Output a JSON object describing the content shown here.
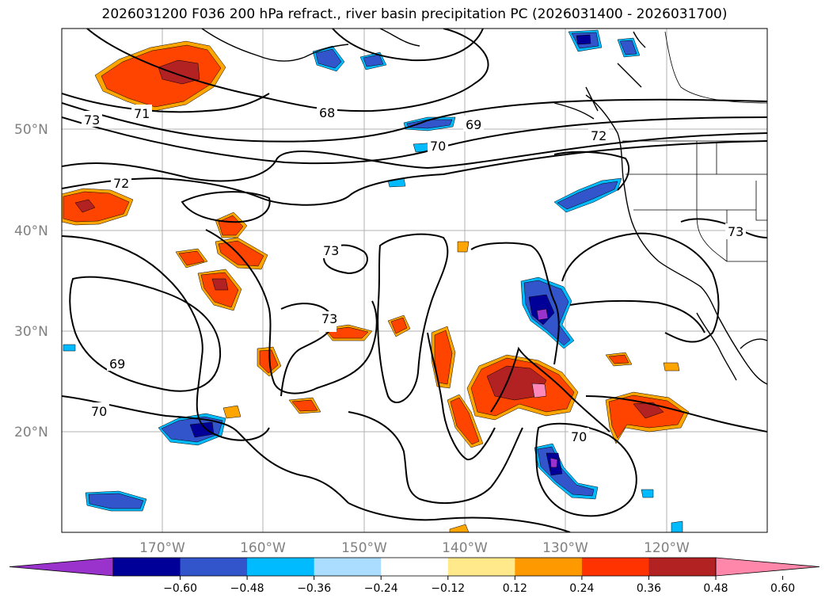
{
  "title": "2026031200 F036 200 hPa refract., river basin precipitation PC (2026031400 - 2026031700)",
  "lat_labels": [
    "50°N",
    "40°N",
    "30°N",
    "20°N"
  ],
  "lon_labels": [
    "170°W",
    "160°W",
    "150°W",
    "140°W",
    "130°W",
    "120°W"
  ],
  "contour_labels": [
    "73",
    "71",
    "68",
    "69",
    "70",
    "72",
    "72",
    "73",
    "73",
    "73",
    "69",
    "70",
    "70"
  ],
  "colorbar": {
    "ticks": [
      "−0.60",
      "−0.48",
      "−0.36",
      "−0.24",
      "−0.12",
      "0.12",
      "0.24",
      "0.36",
      "0.48",
      "0.60"
    ],
    "colors": [
      "#9933cc",
      "#000099",
      "#3355cc",
      "#00bbff",
      "#aaddff",
      "#ffffff",
      "#ffe98a",
      "#ff9900",
      "#ff3300",
      "#b22222",
      "#ff88aa"
    ]
  },
  "fill_colors": {
    "orange_red": "#ff4400",
    "dark_red": "#b22222",
    "orange": "#ffa500",
    "yellow": "#ffe680",
    "pink": "#ff88bb",
    "blue": "#3355cc",
    "navy": "#000099",
    "cyan": "#00bbff",
    "light_blue": "#aaddff",
    "purple": "#9933cc"
  }
}
